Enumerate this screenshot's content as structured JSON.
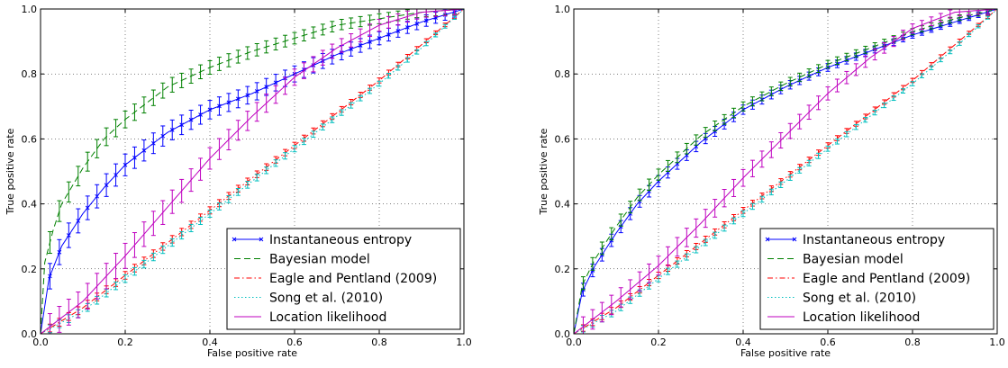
{
  "chart_data": [
    {
      "type": "line",
      "xlabel": "False positive rate",
      "ylabel": "True positive rate",
      "xlim": [
        0,
        1
      ],
      "ylim": [
        0,
        1
      ],
      "xticks": [
        "0.0",
        "0.2",
        "0.4",
        "0.6",
        "0.8",
        "1.0"
      ],
      "yticks": [
        "0.0",
        "0.2",
        "0.4",
        "0.6",
        "0.8",
        "1.0"
      ],
      "grid": true,
      "legend_position": "bottom-right",
      "series": [
        {
          "name": "Instantaneous entropy",
          "color": "#0000ff",
          "style": "solid-x",
          "x": [
            0,
            0.02,
            0.05,
            0.1,
            0.15,
            0.2,
            0.3,
            0.4,
            0.5,
            0.6,
            0.7,
            0.8,
            0.9,
            1.0
          ],
          "y": [
            0,
            0.17,
            0.27,
            0.37,
            0.45,
            0.52,
            0.62,
            0.69,
            0.74,
            0.8,
            0.86,
            0.91,
            0.96,
            1.0
          ],
          "error": 0.04
        },
        {
          "name": "Bayesian model",
          "color": "#008000",
          "style": "dashed",
          "x": [
            0,
            0.01,
            0.03,
            0.05,
            0.1,
            0.15,
            0.2,
            0.3,
            0.4,
            0.5,
            0.6,
            0.7,
            0.8,
            0.9,
            1.0
          ],
          "y": [
            0,
            0.22,
            0.32,
            0.4,
            0.51,
            0.6,
            0.66,
            0.76,
            0.82,
            0.87,
            0.91,
            0.95,
            0.97,
            0.99,
            1.0
          ],
          "error": 0.035
        },
        {
          "name": "Eagle and Pentland (2009)",
          "color": "#ff0000",
          "style": "dashdot",
          "x": [
            0,
            0.1,
            0.2,
            0.3,
            0.4,
            0.5,
            0.6,
            0.7,
            0.8,
            0.9,
            1.0
          ],
          "y": [
            0,
            0.08,
            0.18,
            0.28,
            0.38,
            0.48,
            0.58,
            0.68,
            0.78,
            0.89,
            1.0
          ],
          "error": 0.012
        },
        {
          "name": "Song et al. (2010)",
          "color": "#00bfbf",
          "style": "dotted",
          "x": [
            0,
            0.1,
            0.2,
            0.3,
            0.4,
            0.5,
            0.6,
            0.7,
            0.8,
            0.9,
            1.0
          ],
          "y": [
            0,
            0.07,
            0.17,
            0.27,
            0.37,
            0.47,
            0.57,
            0.67,
            0.77,
            0.88,
            1.0
          ],
          "error": 0.012
        },
        {
          "name": "Location likelihood",
          "color": "#bf00bf",
          "style": "solid",
          "x": [
            0,
            0.05,
            0.1,
            0.2,
            0.3,
            0.4,
            0.5,
            0.6,
            0.7,
            0.8,
            0.9,
            1.0
          ],
          "y": [
            0,
            0.05,
            0.1,
            0.24,
            0.39,
            0.54,
            0.67,
            0.79,
            0.88,
            0.95,
            0.99,
            1.0
          ],
          "error": 0.04
        }
      ]
    },
    {
      "type": "line",
      "xlabel": "False positive rate",
      "ylabel": "True positive rate",
      "xlim": [
        0,
        1
      ],
      "ylim": [
        0,
        1
      ],
      "xticks": [
        "0.0",
        "0.2",
        "0.4",
        "0.6",
        "0.8",
        "1.0"
      ],
      "yticks": [
        "0.0",
        "0.2",
        "0.4",
        "0.6",
        "0.8",
        "1.0"
      ],
      "grid": true,
      "legend_position": "bottom-right",
      "series": [
        {
          "name": "Instantaneous entropy",
          "color": "#0000ff",
          "style": "solid-x",
          "x": [
            0,
            0.02,
            0.05,
            0.1,
            0.15,
            0.2,
            0.3,
            0.4,
            0.5,
            0.6,
            0.7,
            0.8,
            0.9,
            1.0
          ],
          "y": [
            0,
            0.13,
            0.21,
            0.31,
            0.4,
            0.47,
            0.59,
            0.69,
            0.76,
            0.82,
            0.87,
            0.92,
            0.96,
            1.0
          ],
          "error": 0.02
        },
        {
          "name": "Bayesian model",
          "color": "#008000",
          "style": "dashed",
          "x": [
            0,
            0.02,
            0.05,
            0.1,
            0.15,
            0.2,
            0.3,
            0.4,
            0.5,
            0.6,
            0.7,
            0.8,
            0.9,
            1.0
          ],
          "y": [
            0,
            0.15,
            0.23,
            0.33,
            0.42,
            0.49,
            0.61,
            0.7,
            0.77,
            0.83,
            0.88,
            0.93,
            0.97,
            1.0
          ],
          "error": 0.02
        },
        {
          "name": "Eagle and Pentland (2009)",
          "color": "#ff0000",
          "style": "dashdot",
          "x": [
            0,
            0.1,
            0.2,
            0.3,
            0.4,
            0.5,
            0.6,
            0.7,
            0.8,
            0.9,
            1.0
          ],
          "y": [
            0,
            0.08,
            0.18,
            0.28,
            0.38,
            0.48,
            0.58,
            0.68,
            0.78,
            0.89,
            1.0
          ],
          "error": 0.01
        },
        {
          "name": "Song et al. (2010)",
          "color": "#00bfbf",
          "style": "dotted",
          "x": [
            0,
            0.1,
            0.2,
            0.3,
            0.4,
            0.5,
            0.6,
            0.7,
            0.8,
            0.9,
            1.0
          ],
          "y": [
            0,
            0.07,
            0.17,
            0.27,
            0.37,
            0.47,
            0.57,
            0.67,
            0.77,
            0.88,
            1.0
          ],
          "error": 0.01
        },
        {
          "name": "Location likelihood",
          "color": "#bf00bf",
          "style": "solid",
          "x": [
            0,
            0.05,
            0.1,
            0.2,
            0.3,
            0.4,
            0.5,
            0.6,
            0.7,
            0.8,
            0.9,
            1.0
          ],
          "y": [
            0,
            0.05,
            0.1,
            0.21,
            0.34,
            0.48,
            0.61,
            0.74,
            0.85,
            0.94,
            0.99,
            1.0
          ],
          "error": 0.03
        }
      ]
    }
  ]
}
